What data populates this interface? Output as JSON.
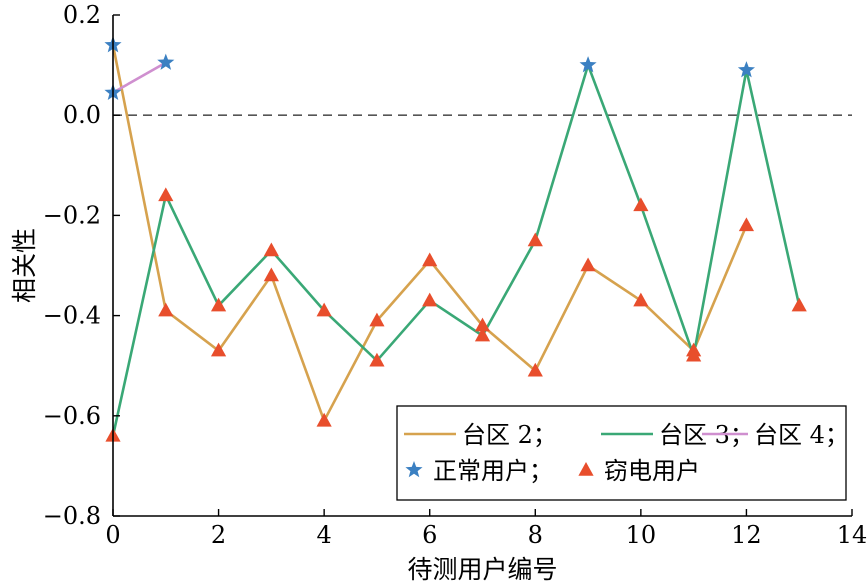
{
  "chart_data": {
    "type": "line",
    "xlabel": "待测用户编号",
    "ylabel": "相关性",
    "xlim": [
      0,
      14
    ],
    "ylim": [
      -0.8,
      0.2
    ],
    "xticks": [
      0,
      2,
      4,
      6,
      8,
      10,
      12,
      14
    ],
    "yticks": [
      -0.8,
      -0.6,
      -0.4,
      -0.2,
      0.0,
      0.2
    ],
    "xtick_labels": [
      "0",
      "2",
      "4",
      "6",
      "8",
      "10",
      "12",
      "14"
    ],
    "ytick_labels": [
      "−0.8",
      "−0.6",
      "−0.4",
      "−0.2",
      "0.0",
      "0.2"
    ],
    "reference_line": {
      "y": 0.0,
      "style": "dashed"
    },
    "grid": false,
    "legend_placement": "bottom-right",
    "series": [
      {
        "name": "台区 2；",
        "color": "#d6a24e",
        "x": [
          0,
          1,
          2,
          3,
          4,
          5,
          6,
          7,
          8,
          9,
          10,
          11,
          12
        ],
        "values": [
          0.14,
          -0.39,
          -0.47,
          -0.32,
          -0.61,
          -0.41,
          -0.29,
          -0.42,
          -0.51,
          -0.3,
          -0.37,
          -0.47,
          -0.22
        ],
        "markers": [
          "star",
          "triangle",
          "triangle",
          "triangle",
          "triangle",
          "triangle",
          "triangle",
          "triangle",
          "triangle",
          "triangle",
          "triangle",
          "triangle",
          "triangle"
        ]
      },
      {
        "name": "台区 3；",
        "color": "#3aa876",
        "x": [
          0,
          1,
          2,
          3,
          4,
          5,
          6,
          7,
          8,
          9,
          10,
          11,
          12,
          13
        ],
        "values": [
          -0.64,
          -0.16,
          -0.38,
          -0.27,
          -0.39,
          -0.49,
          -0.37,
          -0.44,
          -0.25,
          0.1,
          -0.18,
          -0.48,
          0.09,
          -0.38
        ],
        "markers": [
          "triangle",
          "triangle",
          "triangle",
          "triangle",
          "triangle",
          "triangle",
          "triangle",
          "triangle",
          "triangle",
          "star",
          "triangle",
          "triangle",
          "star",
          "triangle"
        ]
      },
      {
        "name": "台区 4；",
        "color": "#cf8fcf",
        "x": [
          0,
          1
        ],
        "values": [
          0.045,
          0.105
        ],
        "markers": [
          "star",
          "star"
        ]
      }
    ],
    "marker_legend": [
      {
        "name": "正常用户；",
        "marker": "star",
        "color": "#3b80c2"
      },
      {
        "name": "窃电用户",
        "marker": "triangle",
        "color": "#e84e2c"
      }
    ]
  }
}
